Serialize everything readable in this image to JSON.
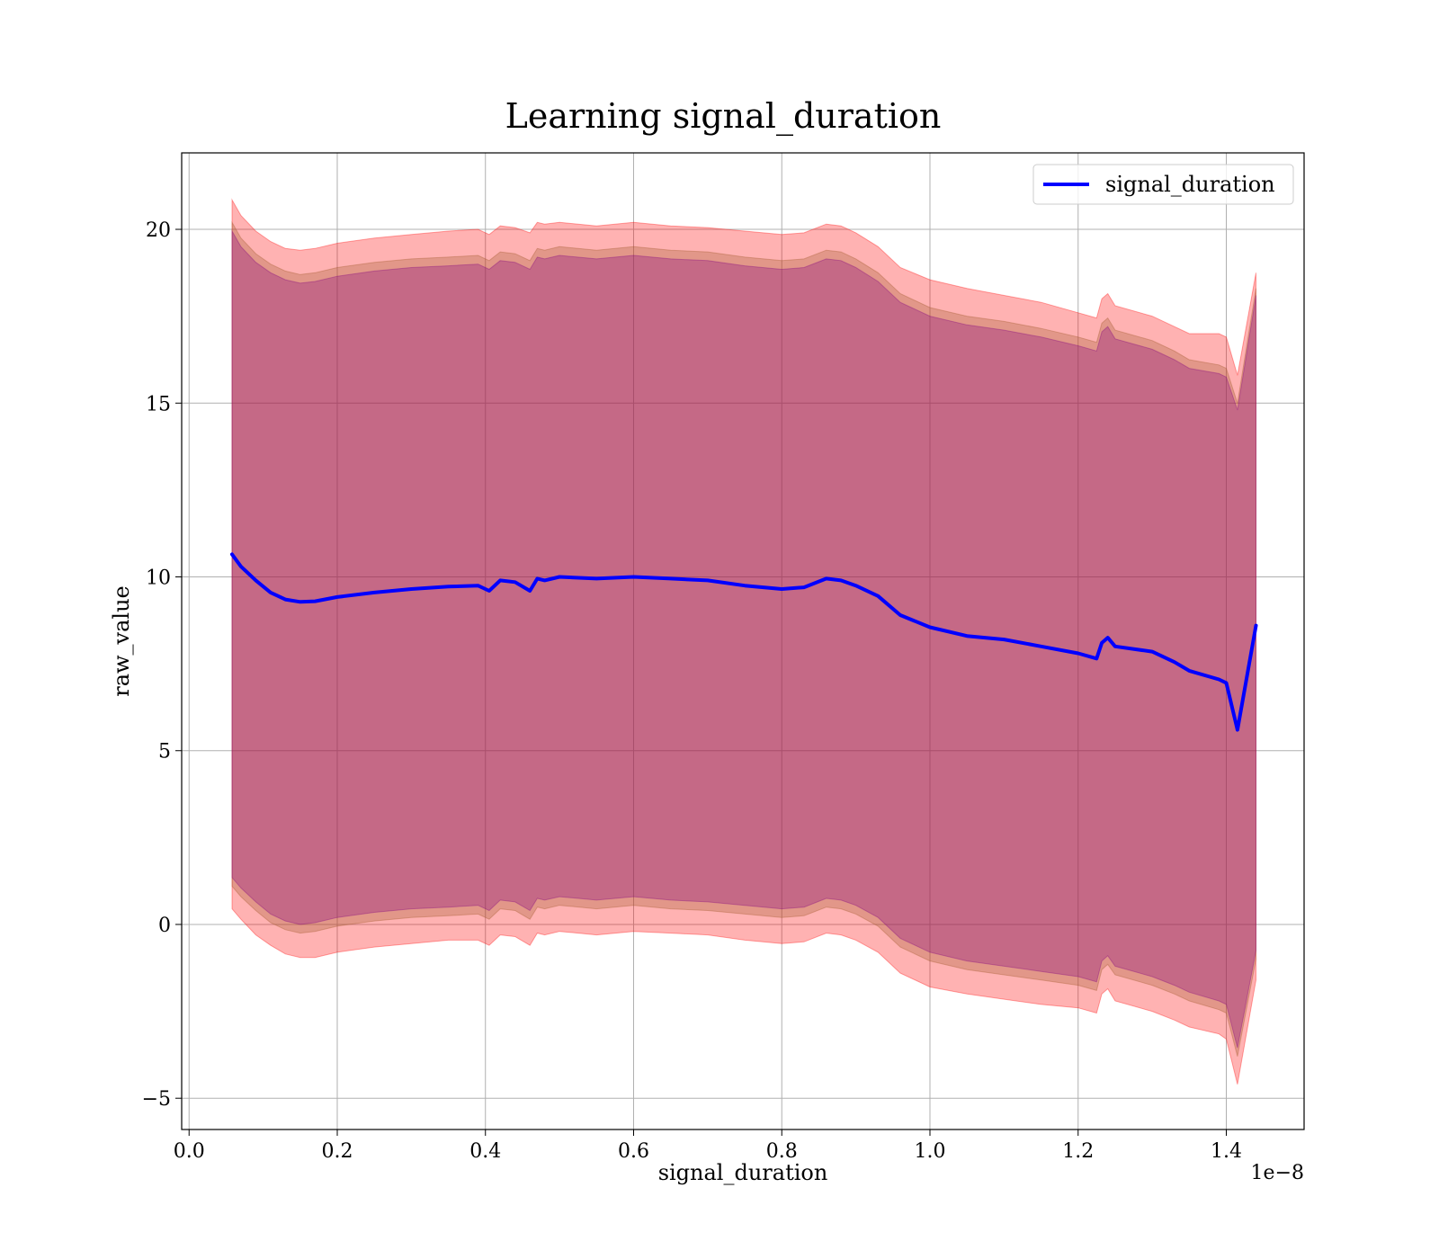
{
  "chart_data": {
    "type": "area",
    "title": "Learning signal_duration",
    "xlabel": "signal_duration",
    "ylabel": "raw_value",
    "x_scale_label": "1e−8",
    "xlim": [
      -0.01,
      1.505
    ],
    "ylim": [
      -5.9,
      22.2
    ],
    "x_ticks": [
      0.0,
      0.2,
      0.4,
      0.6,
      0.8,
      1.0,
      1.2,
      1.4
    ],
    "x_tick_labels": [
      "0.0",
      "0.2",
      "0.4",
      "0.6",
      "0.8",
      "1.0",
      "1.2",
      "1.4"
    ],
    "y_ticks": [
      -5,
      0,
      5,
      10,
      15,
      20
    ],
    "y_tick_labels": [
      "−5",
      "0",
      "5",
      "10",
      "15",
      "20"
    ],
    "grid": true,
    "legend": {
      "position": "top-right",
      "entries": [
        "signal_duration"
      ]
    },
    "colors": {
      "line": "#0000ff",
      "band_outer": "#ff0000",
      "band_middle": "#a05a2c",
      "band_inner": "#800080"
    },
    "x": [
      0.058,
      0.07,
      0.09,
      0.11,
      0.13,
      0.15,
      0.17,
      0.2,
      0.25,
      0.3,
      0.35,
      0.39,
      0.405,
      0.42,
      0.44,
      0.46,
      0.47,
      0.48,
      0.5,
      0.55,
      0.6,
      0.65,
      0.7,
      0.75,
      0.8,
      0.83,
      0.86,
      0.88,
      0.9,
      0.93,
      0.96,
      1.0,
      1.05,
      1.1,
      1.15,
      1.2,
      1.225,
      1.232,
      1.24,
      1.25,
      1.3,
      1.33,
      1.35,
      1.39,
      1.4,
      1.415,
      1.44
    ],
    "series": [
      {
        "name": "signal_duration",
        "values": [
          10.65,
          10.3,
          9.9,
          9.55,
          9.35,
          9.28,
          9.3,
          9.42,
          9.55,
          9.65,
          9.72,
          9.75,
          9.6,
          9.9,
          9.85,
          9.6,
          9.95,
          9.9,
          10.0,
          9.95,
          10.0,
          9.95,
          9.9,
          9.75,
          9.65,
          9.7,
          9.95,
          9.9,
          9.75,
          9.45,
          8.9,
          8.55,
          8.3,
          8.2,
          8.0,
          7.8,
          7.65,
          8.1,
          8.25,
          8.0,
          7.85,
          7.55,
          7.3,
          7.05,
          6.95,
          5.6,
          8.6
        ]
      }
    ],
    "bands": [
      {
        "name": "outer",
        "color_key": "band_outer",
        "upper": [
          20.85,
          20.4,
          19.95,
          19.65,
          19.45,
          19.4,
          19.45,
          19.6,
          19.75,
          19.85,
          19.95,
          20.0,
          19.85,
          20.1,
          20.05,
          19.9,
          20.2,
          20.15,
          20.2,
          20.1,
          20.2,
          20.1,
          20.05,
          19.95,
          19.85,
          19.9,
          20.15,
          20.1,
          19.9,
          19.5,
          18.9,
          18.55,
          18.3,
          18.1,
          17.9,
          17.6,
          17.45,
          18.0,
          18.15,
          17.8,
          17.5,
          17.2,
          17.0,
          17.0,
          16.9,
          15.8,
          18.75
        ],
        "lower": [
          0.45,
          0.15,
          -0.3,
          -0.6,
          -0.85,
          -0.95,
          -0.95,
          -0.8,
          -0.65,
          -0.55,
          -0.45,
          -0.45,
          -0.6,
          -0.3,
          -0.35,
          -0.6,
          -0.25,
          -0.3,
          -0.2,
          -0.3,
          -0.2,
          -0.25,
          -0.3,
          -0.45,
          -0.55,
          -0.5,
          -0.25,
          -0.3,
          -0.45,
          -0.8,
          -1.4,
          -1.8,
          -2.0,
          -2.15,
          -2.3,
          -2.4,
          -2.55,
          -2.0,
          -1.85,
          -2.2,
          -2.5,
          -2.75,
          -2.95,
          -3.15,
          -3.3,
          -4.6,
          -1.6
        ]
      },
      {
        "name": "middle",
        "color_key": "band_middle",
        "upper": [
          20.2,
          19.75,
          19.3,
          19.0,
          18.8,
          18.7,
          18.75,
          18.9,
          19.05,
          19.15,
          19.2,
          19.25,
          19.1,
          19.35,
          19.3,
          19.1,
          19.45,
          19.4,
          19.5,
          19.4,
          19.5,
          19.4,
          19.35,
          19.2,
          19.1,
          19.15,
          19.4,
          19.35,
          19.15,
          18.75,
          18.15,
          17.75,
          17.5,
          17.35,
          17.15,
          16.9,
          16.75,
          17.3,
          17.45,
          17.1,
          16.8,
          16.5,
          16.25,
          16.1,
          16.0,
          15.0,
          18.3
        ],
        "lower": [
          1.1,
          0.8,
          0.4,
          0.05,
          -0.15,
          -0.25,
          -0.2,
          -0.05,
          0.1,
          0.2,
          0.25,
          0.3,
          0.15,
          0.45,
          0.4,
          0.15,
          0.5,
          0.45,
          0.55,
          0.45,
          0.55,
          0.45,
          0.4,
          0.3,
          0.2,
          0.25,
          0.5,
          0.45,
          0.3,
          -0.05,
          -0.65,
          -1.05,
          -1.3,
          -1.45,
          -1.6,
          -1.75,
          -1.9,
          -1.3,
          -1.15,
          -1.45,
          -1.75,
          -2.0,
          -2.2,
          -2.45,
          -2.55,
          -3.8,
          -1.0
        ]
      },
      {
        "name": "inner",
        "color_key": "band_inner",
        "upper": [
          19.95,
          19.5,
          19.05,
          18.75,
          18.55,
          18.45,
          18.5,
          18.65,
          18.8,
          18.9,
          18.95,
          19.0,
          18.85,
          19.1,
          19.05,
          18.85,
          19.2,
          19.15,
          19.25,
          19.15,
          19.25,
          19.15,
          19.1,
          18.95,
          18.85,
          18.9,
          19.15,
          19.1,
          18.9,
          18.5,
          17.9,
          17.5,
          17.25,
          17.1,
          16.9,
          16.65,
          16.5,
          17.05,
          17.2,
          16.85,
          16.55,
          16.25,
          16.0,
          15.85,
          15.75,
          14.8,
          18.1
        ],
        "lower": [
          1.35,
          1.05,
          0.65,
          0.3,
          0.1,
          0.0,
          0.05,
          0.2,
          0.35,
          0.45,
          0.5,
          0.55,
          0.4,
          0.7,
          0.65,
          0.4,
          0.75,
          0.7,
          0.8,
          0.7,
          0.8,
          0.7,
          0.65,
          0.55,
          0.45,
          0.5,
          0.75,
          0.7,
          0.55,
          0.2,
          -0.4,
          -0.8,
          -1.05,
          -1.2,
          -1.35,
          -1.5,
          -1.65,
          -1.05,
          -0.9,
          -1.2,
          -1.5,
          -1.75,
          -1.95,
          -2.2,
          -2.3,
          -3.55,
          -0.75
        ]
      }
    ]
  }
}
